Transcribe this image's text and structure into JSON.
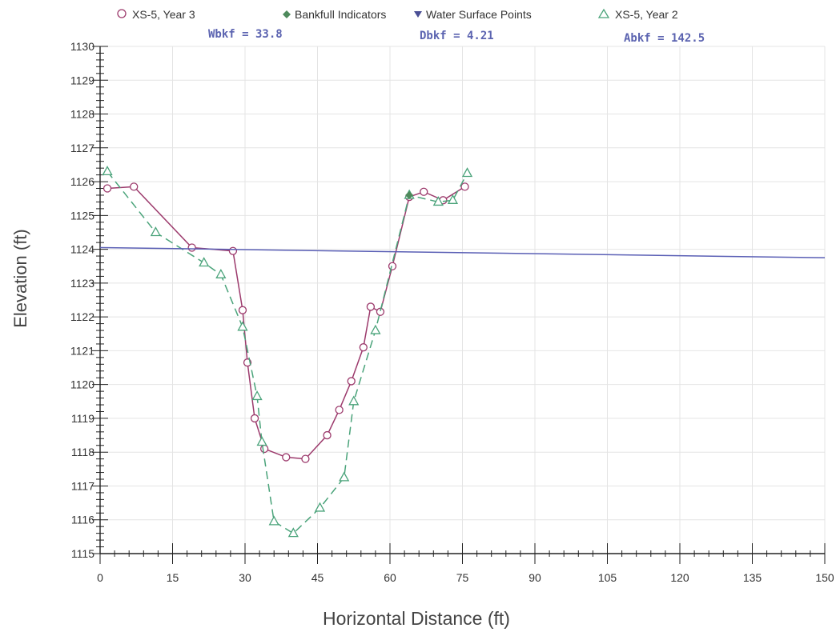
{
  "legend": {
    "year3_label": "XS-5, Year 3",
    "bankfull_label": "Bankfull Indicators",
    "water_label": "Water Surface Points",
    "year2_label": "XS-5, Year 2"
  },
  "stats": {
    "wbkf": "Wbkf = 33.8",
    "dbkf": "Dbkf = 4.21",
    "abkf": "Abkf = 142.5"
  },
  "colors": {
    "year3": "#9c3a6c",
    "year2": "#4aa37a",
    "water": "#5a5fb5",
    "stats_text": "#5b63b0",
    "grid": "#e4e4e4",
    "axis": "#222222"
  },
  "chart_data": {
    "type": "line",
    "title": "",
    "xlabel": "Horizontal Distance (ft)",
    "ylabel": "Elevation (ft)",
    "xlim": [
      0,
      150
    ],
    "ylim": [
      1115,
      1130
    ],
    "x_ticks": [
      0,
      15,
      30,
      45,
      60,
      75,
      90,
      105,
      120,
      135,
      150
    ],
    "y_ticks": [
      1115,
      1116,
      1117,
      1118,
      1119,
      1120,
      1121,
      1122,
      1123,
      1124,
      1125,
      1126,
      1127,
      1128,
      1129,
      1130
    ],
    "grid": true,
    "legend_position": "top",
    "series": [
      {
        "name": "XS-5, Year 3",
        "marker": "circle",
        "line": "solid",
        "x": [
          1.5,
          7,
          19,
          27.5,
          29.5,
          30.5,
          32,
          34,
          38.5,
          42.5,
          47,
          49.5,
          52,
          54.5,
          56,
          58,
          60.5,
          64,
          67,
          71,
          75.5
        ],
        "y": [
          1125.8,
          1125.85,
          1124.05,
          1123.95,
          1122.2,
          1120.65,
          1119.0,
          1118.1,
          1117.85,
          1117.8,
          1118.5,
          1119.25,
          1120.1,
          1121.1,
          1122.3,
          1122.15,
          1123.5,
          1125.55,
          1125.7,
          1125.45,
          1125.85
        ]
      },
      {
        "name": "XS-5, Year 2",
        "marker": "triangle",
        "line": "dashed",
        "x": [
          1.5,
          11.5,
          21.5,
          25,
          29.5,
          32.5,
          33.5,
          36,
          40,
          45.5,
          50.5,
          52.5,
          57,
          64,
          70,
          73,
          76
        ],
        "y": [
          1126.3,
          1124.5,
          1123.6,
          1123.25,
          1121.7,
          1119.65,
          1118.3,
          1115.95,
          1115.6,
          1116.35,
          1117.25,
          1119.5,
          1121.6,
          1125.6,
          1125.4,
          1125.45,
          1126.25
        ]
      },
      {
        "name": "Bankfull Indicators",
        "marker": "diamond",
        "x": [
          64
        ],
        "y": [
          1125.6
        ]
      },
      {
        "name": "Water Surface Points",
        "marker": "triangle-down",
        "line": "solid",
        "x": [
          0,
          150
        ],
        "y": [
          1124.05,
          1123.75
        ]
      }
    ]
  }
}
